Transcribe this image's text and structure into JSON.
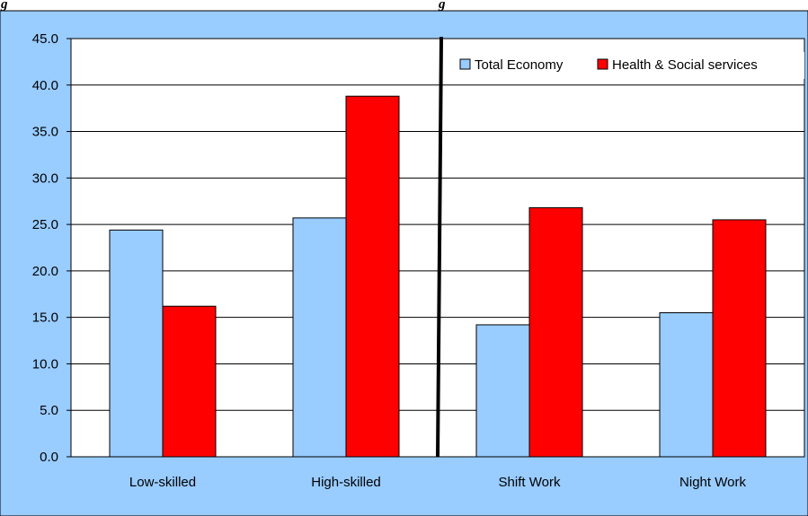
{
  "chart_data": {
    "type": "bar",
    "title": "",
    "xlabel": "",
    "ylabel": "",
    "categories": [
      "Low-skilled",
      "High-skilled",
      "Shift Work",
      "Night Work"
    ],
    "series": [
      {
        "name": "Total Economy",
        "values": [
          24.4,
          25.7,
          14.2,
          15.5
        ],
        "color": "#99ccff"
      },
      {
        "name": "Health & Social services",
        "values": [
          16.2,
          38.8,
          26.8,
          25.5
        ],
        "color": "#ff0000"
      }
    ],
    "ylim": [
      0,
      45
    ],
    "yticks": [
      "0.0",
      "5.0",
      "10.0",
      "15.0",
      "20.0",
      "25.0",
      "30.0",
      "35.0",
      "40.0",
      "45.0"
    ],
    "grid": true,
    "legend_position": "top-right",
    "divider_after_category": 2,
    "colors": {
      "chart_area": "#99ccff",
      "plot_area": "#ffffff",
      "divider": "#000000"
    }
  },
  "header_partial": "g"
}
